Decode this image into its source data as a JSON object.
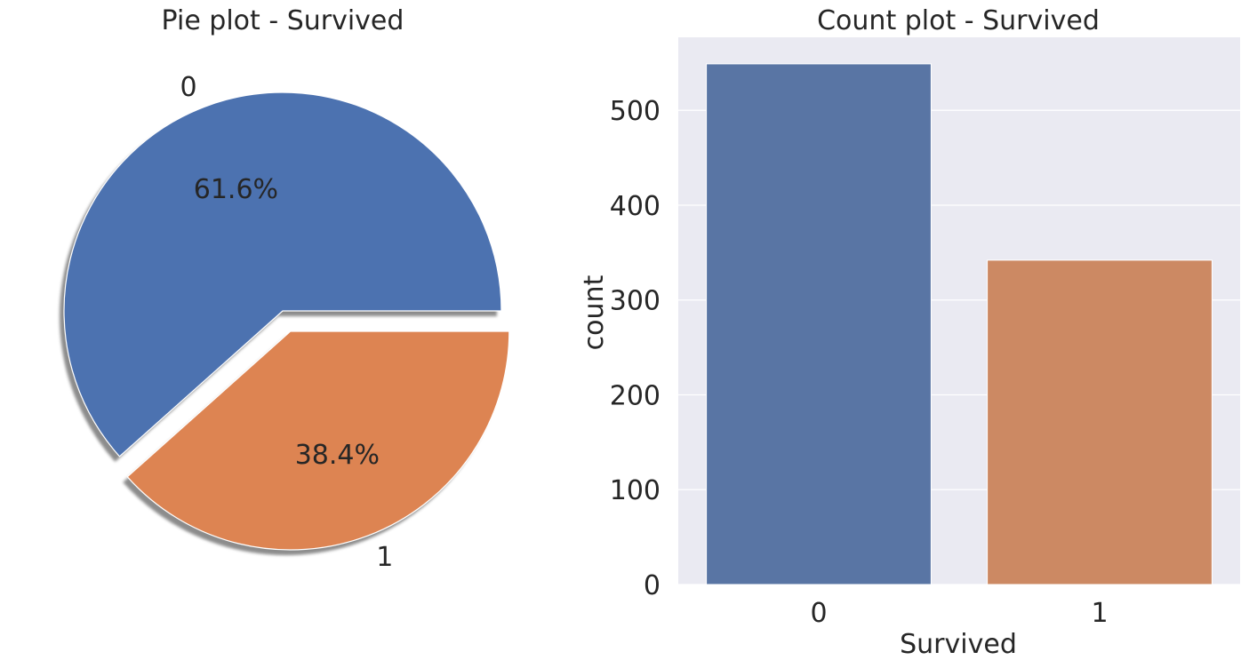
{
  "chart_data": [
    {
      "type": "pie",
      "title": "Pie plot - Survived",
      "labels": [
        "0",
        "1"
      ],
      "values": [
        61.6,
        38.4
      ],
      "pct_labels": [
        "61.6%",
        "38.4%"
      ],
      "explode": [
        0,
        0.1
      ],
      "shadow": true,
      "colors": [
        "#4c72b0",
        "#dd8452"
      ]
    },
    {
      "type": "bar",
      "title": "Count plot - Survived",
      "categories": [
        "0",
        "1"
      ],
      "values": [
        549,
        342
      ],
      "xlabel": "Survived",
      "ylabel": "count",
      "ylim": [
        0,
        577
      ],
      "yticks": [
        0,
        100,
        200,
        300,
        400,
        500
      ],
      "grid": true,
      "colors": [
        "#5975a4",
        "#cc8963"
      ],
      "background": "#eaeaf2"
    }
  ]
}
